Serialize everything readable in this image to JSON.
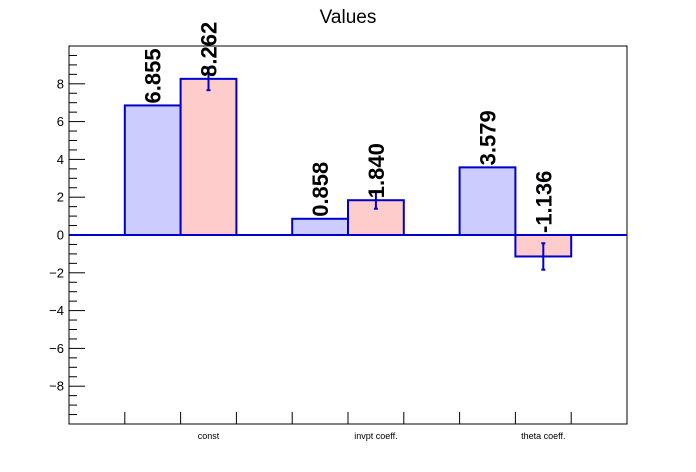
{
  "chart_data": {
    "type": "bar",
    "title": "Values",
    "xlabel": "",
    "ylabel": "",
    "categories": [
      "const",
      "invpt coeff.",
      "theta coeff."
    ],
    "ylim": [
      -10,
      10
    ],
    "yticks": [
      -8,
      -6,
      -4,
      -2,
      0,
      2,
      4,
      6,
      8
    ],
    "series": [
      {
        "values": [
          6.855,
          0.858,
          3.579
        ],
        "labels": [
          "6.855",
          "0.858",
          "3.579"
        ],
        "color": "#ccccff",
        "errors": null
      },
      {
        "values": [
          8.262,
          1.84,
          -1.136
        ],
        "labels": [
          "8.262",
          "1.840",
          "-1.136"
        ],
        "color": "#ffcccc",
        "errors": [
          0.6,
          0.45,
          0.7
        ]
      }
    ],
    "edge_color": "#0000cc",
    "grid": false,
    "legend": "none"
  }
}
